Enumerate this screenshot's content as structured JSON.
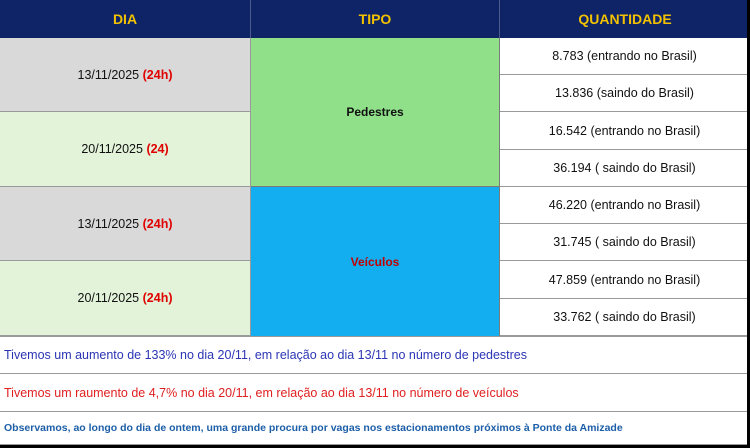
{
  "header": {
    "dia": "DIA",
    "tipo": "TIPO",
    "quantidade": "QUANTIDADE"
  },
  "days": [
    {
      "date": "13/11/2025",
      "tag": "(24h)"
    },
    {
      "date": "20/11/2025",
      "tag": "(24)"
    },
    {
      "date": "13/11/2025",
      "tag": "(24h)"
    },
    {
      "date": "20/11/2025",
      "tag": "(24h)"
    }
  ],
  "tipos": {
    "pedestres": "Pedestres",
    "veiculos": "Veículos"
  },
  "quantities": [
    "8.783 (entrando no Brasil)",
    "13.836 (saindo do Brasil)",
    "16.542 (entrando no Brasil)",
    "36.194  ( saindo do Brasil)",
    "46.220 (entrando no Brasil)",
    "31.745  ( saindo do Brasil)",
    "47.859 (entrando no Brasil)",
    "33.762 ( saindo do Brasil)"
  ],
  "notes": {
    "pedestres": "Tivemos um aumento de 133% no dia 20/11, em relação ao dia 13/11  no número de pedestres",
    "veiculos": "Tivemos um raumento de 4,7% no dia 20/11, em relação ao dia 13/11 no número de veículos",
    "observacao": "Observamos, ao longo do dia de ontem, uma grande procura por vagas nos estacionamentos próximos à Ponte da Amizade"
  },
  "colors": {
    "header_bg": "#0f2466",
    "header_text": "#f2c200",
    "pedestres_bg": "#8fe089",
    "veiculos_bg": "#12aef0",
    "day_gray": "#d9d9d9",
    "day_green": "#e3f3da",
    "highlight_red": "#e00000"
  }
}
